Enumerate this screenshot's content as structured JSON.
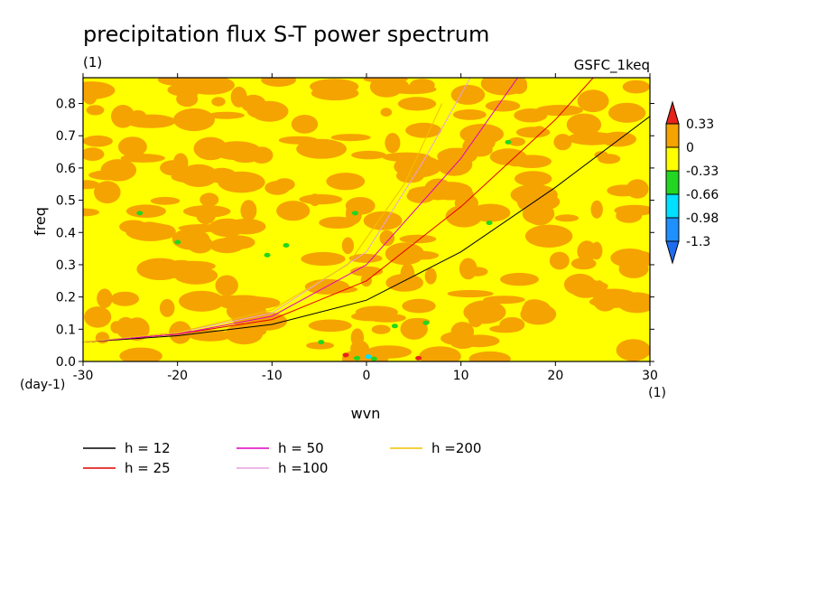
{
  "chart_data": {
    "type": "heatmap",
    "title": "precipitation flux S-T power spectrum",
    "subtitle_left": "(1)",
    "subtitle_right": "GSFC_1keq",
    "xlabel": "wvn",
    "ylabel": "freq",
    "x_unit": "(1)",
    "y_unit": "(day-1)",
    "xlim": [
      -30,
      30
    ],
    "ylim": [
      0,
      0.88
    ],
    "x_ticks": [
      "-30",
      "-20",
      "-10",
      "0",
      "10",
      "20",
      "30"
    ],
    "y_ticks": [
      "0.0",
      "0.1",
      "0.2",
      "0.3",
      "0.4",
      "0.5",
      "0.6",
      "0.7",
      "0.8"
    ],
    "colorbar": {
      "levels": [
        "0.33",
        "0",
        "-0.33",
        "-0.66",
        "-0.98",
        "-1.3"
      ],
      "colors": [
        "#e8221c",
        "#f5a300",
        "#ffff00",
        "#22d622",
        "#00e0ff",
        "#1e90ff",
        "#1e6cf0"
      ]
    },
    "background_color": "#ffff00",
    "dominant_pattern": "mottled orange (0 to 0.33) and yellow (-0.33 to 0) patches across the domain, with small green/cyan/red spots near wvn 0, freq 0-0.05",
    "dispersion_curves": [
      {
        "label": "h = 12",
        "h": 12,
        "color": "#000000"
      },
      {
        "label": "h = 25",
        "h": 25,
        "color": "#e00000"
      },
      {
        "label": "h = 50",
        "h": 50,
        "color": "#e000c0"
      },
      {
        "label": "h =100",
        "h": 100,
        "color": "#e8a0e0"
      },
      {
        "label": "h =200",
        "h": 200,
        "color": "#f0c000"
      }
    ],
    "curve_points": [
      {
        "h": 12,
        "points": [
          [
            -30,
            0.06
          ],
          [
            -20,
            0.08
          ],
          [
            -10,
            0.115
          ],
          [
            0,
            0.19
          ],
          [
            10,
            0.34
          ],
          [
            20,
            0.54
          ],
          [
            30,
            0.76
          ]
        ]
      },
      {
        "h": 25,
        "points": [
          [
            -30,
            0.06
          ],
          [
            -20,
            0.085
          ],
          [
            -10,
            0.13
          ],
          [
            0,
            0.25
          ],
          [
            10,
            0.48
          ],
          [
            20,
            0.75
          ],
          [
            24,
            0.88
          ]
        ]
      },
      {
        "h": 50,
        "points": [
          [
            -30,
            0.06
          ],
          [
            -20,
            0.085
          ],
          [
            -10,
            0.14
          ],
          [
            0,
            0.3
          ],
          [
            10,
            0.63
          ],
          [
            16,
            0.88
          ]
        ]
      },
      {
        "h": 100,
        "points": [
          [
            -30,
            0.06
          ],
          [
            -20,
            0.09
          ],
          [
            -10,
            0.15
          ],
          [
            0,
            0.34
          ],
          [
            6,
            0.62
          ],
          [
            11,
            0.88
          ]
        ]
      },
      {
        "h": 200,
        "points": [
          [
            -30,
            0.06
          ],
          [
            -20,
            0.09
          ],
          [
            -10,
            0.16
          ],
          [
            -2,
            0.3
          ],
          [
            4,
            0.55
          ],
          [
            8,
            0.8
          ]
        ]
      }
    ]
  }
}
